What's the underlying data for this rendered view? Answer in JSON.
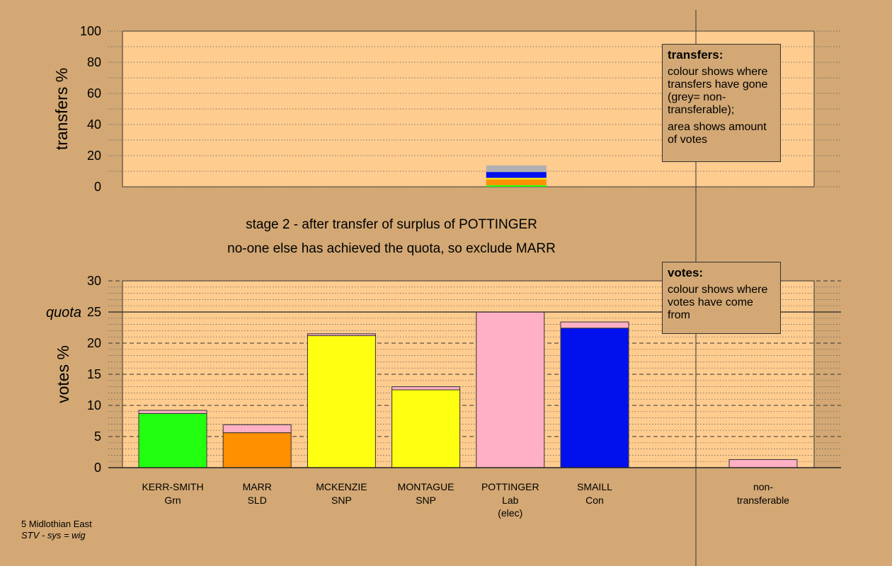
{
  "colors": {
    "background": "#d3a874",
    "plot_area": "#ffcc8f",
    "Grn": "#22ff11",
    "SLD": "#ff9000",
    "SNP": "#ffff11",
    "Lab": "#ffb0c4",
    "Con": "#0011ee",
    "non_transferable": "#b0b0b0"
  },
  "legend_transfers": {
    "title": "transfers:",
    "line1": "colour shows where transfers have gone (grey= non-transferable);",
    "line2": "area shows amount of votes"
  },
  "legend_votes": {
    "title": "votes:",
    "line1": "colour shows where votes have come from"
  },
  "footer": {
    "constituency": "5 Midlothian East",
    "system": "STV - sys = wig"
  },
  "chart_data": [
    {
      "type": "bar",
      "ylabel": "transfers %",
      "ylim": [
        0,
        100
      ],
      "yticks": [
        0,
        20,
        40,
        60,
        80,
        100
      ],
      "grid": "dotted every 10",
      "stacked_segments_for": "POTTINGER",
      "series": [
        {
          "name": "Grn",
          "value": 1.0
        },
        {
          "name": "SLD",
          "value": 3.8
        },
        {
          "name": "SNP",
          "value": 0.9
        },
        {
          "name": "Con",
          "value": 3.8
        },
        {
          "name": "non-transferable",
          "value": 4.2
        }
      ]
    },
    {
      "type": "bar",
      "title": "stage 2 - after transfer of surplus of POTTINGER",
      "subtitle": "no-one else has achieved the quota, so exclude MARR",
      "ylabel": "votes %",
      "ylim": [
        0,
        30
      ],
      "yticks": [
        0,
        5,
        10,
        15,
        20,
        25,
        30
      ],
      "quota": 25,
      "quota_label": "quota",
      "grid": "dashed every 5, dotted every 1",
      "categories": [
        {
          "name": "KERR-SMITH",
          "party": "Grn",
          "note": "",
          "base": 8.7,
          "transfer": 0.5
        },
        {
          "name": "MARR",
          "party": "SLD",
          "note": "",
          "base": 5.6,
          "transfer": 1.3
        },
        {
          "name": "MCKENZIE",
          "party": "SNP",
          "note": "",
          "base": 21.2,
          "transfer": 0.3
        },
        {
          "name": "MONTAGUE",
          "party": "SNP",
          "note": "",
          "base": 12.5,
          "transfer": 0.5
        },
        {
          "name": "POTTINGER",
          "party": "Lab",
          "note": "(elec)",
          "base": 25.0,
          "transfer": 0
        },
        {
          "name": "SMAILL",
          "party": "Con",
          "note": "",
          "base": 22.4,
          "transfer": 1.0
        }
      ],
      "non_transferable": {
        "name": "non-",
        "name2": "transferable",
        "value": 1.3
      }
    }
  ]
}
